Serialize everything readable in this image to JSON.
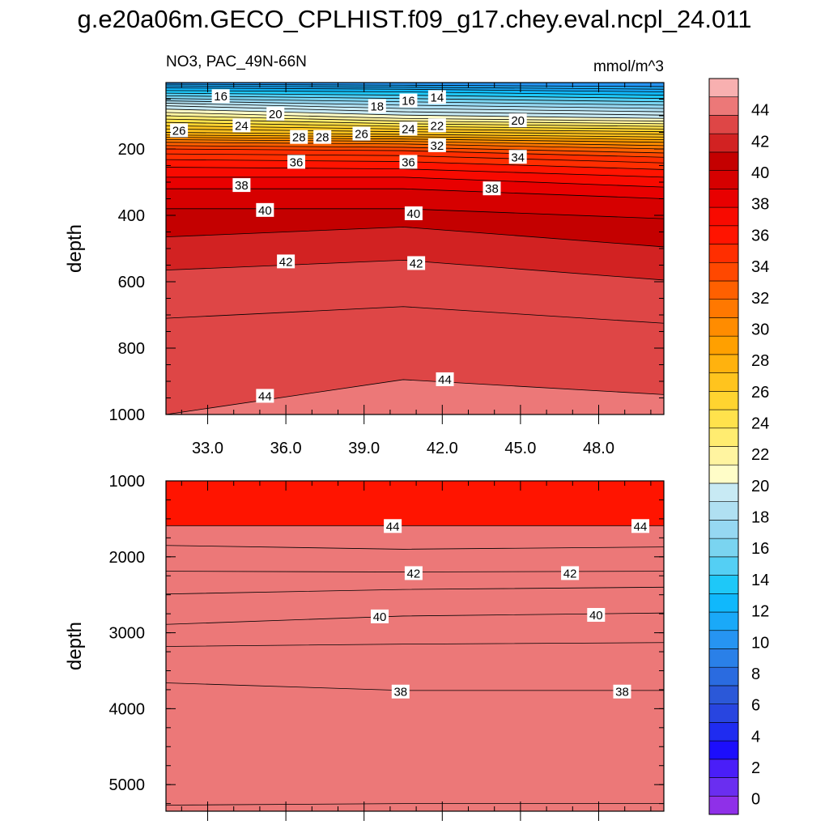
{
  "title": "g.e20a06m.GECO_CPLHIST.f09_g17.chey.eval.ncpl_24.011",
  "colors": {
    "scale": [
      "#8f30e8",
      "#6a2ef0",
      "#4a1ef8",
      "#1c0efc",
      "#1f2cf0",
      "#2845e0",
      "#2b58d8",
      "#2a6be0",
      "#2a80e8",
      "#2694f2",
      "#1aa9f8",
      "#10b8fc",
      "#1ec8f8",
      "#54cff4",
      "#7ad4f0",
      "#96d8f2",
      "#b0e0f2",
      "#c8eaf4",
      "#fffdc8",
      "#fff4a0",
      "#ffec70",
      "#ffe24c",
      "#ffd430",
      "#ffc41e",
      "#ffb20e",
      "#ffa000",
      "#ff8c00",
      "#ff7800",
      "#ff6000",
      "#ff4800",
      "#ff2e00",
      "#ff1400",
      "#f80a00",
      "#e80000",
      "#d60000",
      "#c40000",
      "#d22222",
      "#de4646",
      "#ec7878",
      "#f8b0b0"
    ],
    "contour_line": "#000000"
  },
  "chart_data": [
    {
      "type": "contour",
      "panel": "upper",
      "left_title": "NO3, PAC_49N-66N",
      "right_title": "mmol/m^3",
      "ylabel": "depth",
      "xlim": [
        31.4,
        50.5
      ],
      "ylim": [
        0,
        1000
      ],
      "y_inverted": true,
      "xticks": [
        33,
        36,
        39,
        42,
        45,
        48
      ],
      "xtick_labels": [
        "33.0",
        "36.0",
        "39.0",
        "42.0",
        "45.0",
        "48.0"
      ],
      "yticks": [
        200,
        400,
        600,
        800,
        1000
      ],
      "ytick_labels": [
        "200",
        "400",
        "600",
        "800",
        "1000"
      ],
      "contour_x": [
        31.4,
        40.5,
        50.5
      ],
      "contours": [
        {
          "level": 44,
          "depths": [
            1000,
            895,
            940
          ]
        },
        {
          "level": 43,
          "depths": [
            710,
            675,
            725
          ]
        },
        {
          "level": 42,
          "depths": [
            565,
            535,
            595
          ]
        },
        {
          "level": 41,
          "depths": [
            465,
            435,
            495
          ]
        },
        {
          "level": 40,
          "depths": [
            380,
            380,
            410
          ]
        },
        {
          "level": 39,
          "depths": [
            320,
            320,
            350
          ]
        },
        {
          "level": 38,
          "depths": [
            285,
            285,
            315
          ]
        },
        {
          "level": 37,
          "depths": [
            255,
            260,
            285
          ]
        },
        {
          "level": 36,
          "depths": [
            232,
            238,
            262
          ]
        },
        {
          "level": 35,
          "depths": [
            215,
            220,
            242
          ]
        },
        {
          "level": 34,
          "depths": [
            200,
            205,
            225
          ]
        },
        {
          "level": 33,
          "depths": [
            190,
            195,
            212
          ]
        },
        {
          "level": 32,
          "depths": [
            180,
            185,
            200
          ]
        },
        {
          "level": 31,
          "depths": [
            172,
            177,
            190
          ]
        },
        {
          "level": 30,
          "depths": [
            165,
            170,
            180
          ]
        },
        {
          "level": 29,
          "depths": [
            158,
            163,
            172
          ]
        },
        {
          "level": 28,
          "depths": [
            150,
            156,
            164
          ]
        },
        {
          "level": 27,
          "depths": [
            140,
            148,
            156
          ]
        },
        {
          "level": 26,
          "depths": [
            130,
            140,
            148
          ]
        },
        {
          "level": 25,
          "depths": [
            120,
            132,
            140
          ]
        },
        {
          "level": 24,
          "depths": [
            110,
            124,
            132
          ]
        },
        {
          "level": 23,
          "depths": [
            100,
            116,
            124
          ]
        },
        {
          "level": 22,
          "depths": [
            90,
            108,
            116
          ]
        },
        {
          "level": 21,
          "depths": [
            80,
            98,
            108
          ]
        },
        {
          "level": 20,
          "depths": [
            70,
            88,
            98
          ]
        },
        {
          "level": 19,
          "depths": [
            62,
            78,
            88
          ]
        },
        {
          "level": 18,
          "depths": [
            55,
            68,
            78
          ]
        },
        {
          "level": 17,
          "depths": [
            48,
            58,
            68
          ]
        },
        {
          "level": 16,
          "depths": [
            40,
            48,
            58
          ]
        },
        {
          "level": 15,
          "depths": [
            32,
            38,
            48
          ]
        },
        {
          "level": 14,
          "depths": [
            24,
            28,
            38
          ]
        },
        {
          "level": 13,
          "depths": [
            16,
            20,
            28
          ]
        },
        {
          "level": 12,
          "depths": [
            10,
            14,
            20
          ]
        },
        {
          "level": 11,
          "depths": [
            5,
            8,
            12
          ]
        }
      ],
      "labels": [
        {
          "text": "16",
          "x": 33.5,
          "y": 42
        },
        {
          "text": "20",
          "x": 35.6,
          "y": 95
        },
        {
          "text": "18",
          "x": 39.5,
          "y": 72
        },
        {
          "text": "16",
          "x": 40.7,
          "y": 55
        },
        {
          "text": "14",
          "x": 41.8,
          "y": 45
        },
        {
          "text": "20",
          "x": 44.9,
          "y": 115
        },
        {
          "text": "26",
          "x": 31.9,
          "y": 145
        },
        {
          "text": "24",
          "x": 34.3,
          "y": 130
        },
        {
          "text": "28",
          "x": 36.5,
          "y": 165
        },
        {
          "text": "28",
          "x": 37.4,
          "y": 165
        },
        {
          "text": "26",
          "x": 38.9,
          "y": 155
        },
        {
          "text": "24",
          "x": 40.7,
          "y": 140
        },
        {
          "text": "22",
          "x": 41.8,
          "y": 130
        },
        {
          "text": "32",
          "x": 41.8,
          "y": 190
        },
        {
          "text": "34",
          "x": 44.9,
          "y": 225
        },
        {
          "text": "36",
          "x": 36.4,
          "y": 240
        },
        {
          "text": "36",
          "x": 40.7,
          "y": 240
        },
        {
          "text": "38",
          "x": 34.3,
          "y": 310
        },
        {
          "text": "38",
          "x": 43.9,
          "y": 320
        },
        {
          "text": "40",
          "x": 35.2,
          "y": 385
        },
        {
          "text": "40",
          "x": 40.9,
          "y": 395
        },
        {
          "text": "42",
          "x": 36.0,
          "y": 540
        },
        {
          "text": "42",
          "x": 41.0,
          "y": 545
        },
        {
          "text": "44",
          "x": 35.2,
          "y": 945
        },
        {
          "text": "44",
          "x": 42.1,
          "y": 895
        }
      ]
    },
    {
      "type": "contour",
      "panel": "lower",
      "ylabel": "depth",
      "xlim": [
        31.4,
        50.5
      ],
      "ylim": [
        1000,
        5350
      ],
      "y_inverted": true,
      "yticks": [
        1000,
        2000,
        3000,
        4000,
        5000
      ],
      "ytick_labels": [
        "1000",
        "2000",
        "3000",
        "4000",
        "5000"
      ],
      "contour_x": [
        31.4,
        40.5,
        50.5
      ],
      "contours": [
        {
          "level": 44,
          "depths": [
            1590,
            1590,
            1590
          ]
        },
        {
          "level": 43,
          "depths": [
            1850,
            1900,
            1870
          ]
        },
        {
          "level": 42,
          "depths": [
            2190,
            2200,
            2190
          ]
        },
        {
          "level": 41,
          "depths": [
            2490,
            2430,
            2400
          ]
        },
        {
          "level": 40,
          "depths": [
            2890,
            2780,
            2740
          ]
        },
        {
          "level": 39,
          "depths": [
            3180,
            3150,
            3130
          ]
        },
        {
          "level": 38,
          "depths": [
            3660,
            3760,
            3760
          ]
        },
        {
          "level": 37,
          "depths": [
            5270,
            5250,
            5250
          ]
        }
      ],
      "labels": [
        {
          "text": "44",
          "x": 40.1,
          "y": 1600
        },
        {
          "text": "44",
          "x": 49.6,
          "y": 1600
        },
        {
          "text": "42",
          "x": 40.9,
          "y": 2220
        },
        {
          "text": "42",
          "x": 46.9,
          "y": 2220
        },
        {
          "text": "40",
          "x": 39.6,
          "y": 2790
        },
        {
          "text": "40",
          "x": 47.9,
          "y": 2770
        },
        {
          "text": "38",
          "x": 40.4,
          "y": 3780
        },
        {
          "text": "38",
          "x": 48.9,
          "y": 3780
        }
      ]
    },
    {
      "type": "colorbar",
      "levels": [
        0,
        2,
        4,
        6,
        8,
        10,
        12,
        14,
        16,
        18,
        20,
        22,
        24,
        26,
        28,
        30,
        32,
        34,
        36,
        38,
        40,
        42,
        44
      ],
      "level_labels": [
        "0",
        "2",
        "4",
        "6",
        "8",
        "10",
        "12",
        "14",
        "16",
        "18",
        "20",
        "22",
        "24",
        "26",
        "28",
        "30",
        "32",
        "34",
        "36",
        "38",
        "40",
        "42",
        "44"
      ],
      "range": [
        -1,
        46
      ]
    }
  ]
}
